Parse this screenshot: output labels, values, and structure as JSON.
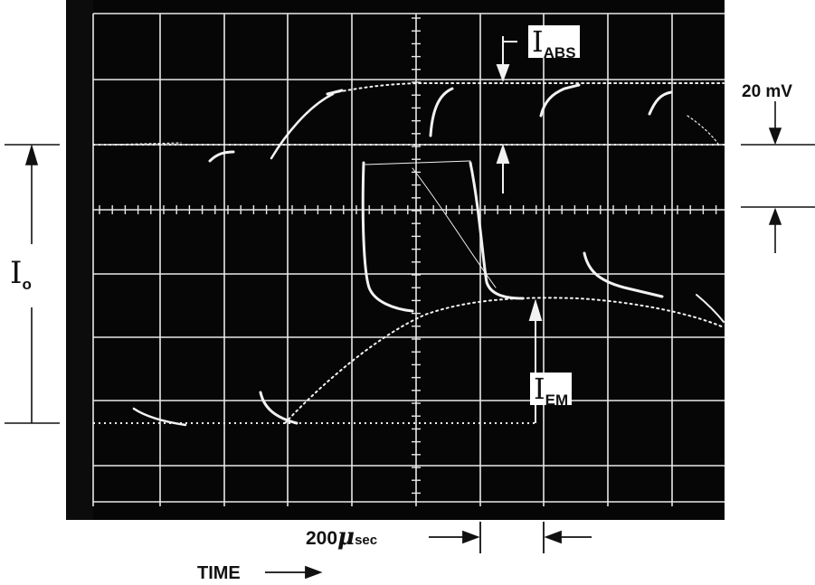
{
  "labels": {
    "i_abs_symbol": "I",
    "i_abs_sub": "ABS",
    "i_em_symbol": "I",
    "i_em_sub": "EM",
    "i0_symbol": "I",
    "i0_sub": "o",
    "scale_20mv": "20 mV",
    "time_scale_value": "200",
    "time_scale_unit": "μ",
    "time_scale_suffix": "sec",
    "time_label": "TIME"
  },
  "colors": {
    "screen": "#060606",
    "grid": "#e8e8e8",
    "trace": "#f2f2f2",
    "ink": "#111111",
    "paper": "#ffffff"
  }
}
